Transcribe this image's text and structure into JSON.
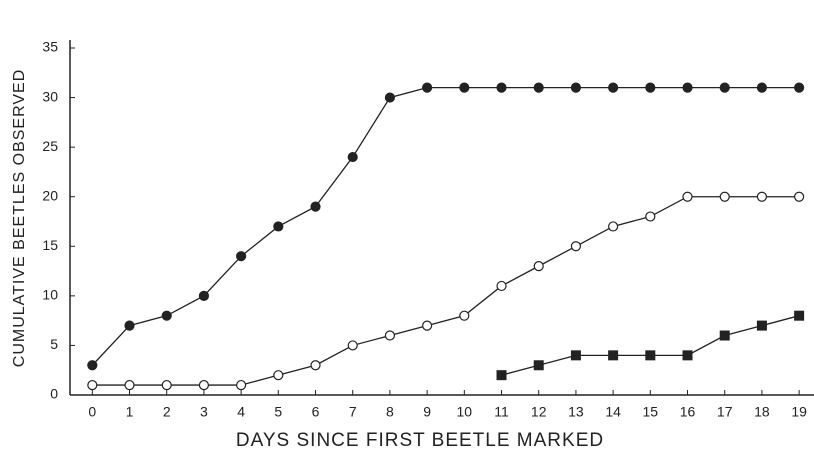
{
  "chart_data": {
    "type": "line",
    "x_label": "DAYS SINCE FIRST BEETLE MARKED",
    "y_label": "CUMULATIVE BEETLES OBSERVED",
    "x": [
      0,
      1,
      2,
      3,
      4,
      5,
      6,
      7,
      8,
      9,
      10,
      11,
      12,
      13,
      14,
      15,
      16,
      17,
      18,
      19
    ],
    "series": [
      {
        "color": "#222222",
        "marker": "filled-circle",
        "values": [
          3,
          7,
          8,
          10,
          14,
          17,
          19,
          24,
          30,
          31,
          31,
          31,
          31,
          31,
          31,
          31,
          31,
          31,
          31,
          31
        ]
      },
      {
        "color": "#222222",
        "marker": "open-circle",
        "values": [
          1,
          1,
          1,
          1,
          1,
          2,
          3,
          5,
          6,
          7,
          8,
          11,
          13,
          15,
          17,
          18,
          20,
          20,
          20,
          20
        ]
      },
      {
        "color": "#222222",
        "marker": "filled-square",
        "values": [
          null,
          null,
          null,
          null,
          null,
          null,
          null,
          null,
          null,
          null,
          null,
          2,
          3,
          4,
          4,
          4,
          4,
          6,
          7,
          8
        ]
      }
    ],
    "xlim": [
      -0.6,
      19.4
    ],
    "xticks": [
      0,
      1,
      2,
      3,
      4,
      5,
      6,
      7,
      8,
      9,
      10,
      11,
      12,
      13,
      14,
      15,
      16,
      17,
      18,
      19
    ],
    "ylim": [
      0,
      35
    ],
    "yticks": [
      0,
      5,
      10,
      15,
      20,
      25,
      30,
      35
    ],
    "grid": false
  }
}
